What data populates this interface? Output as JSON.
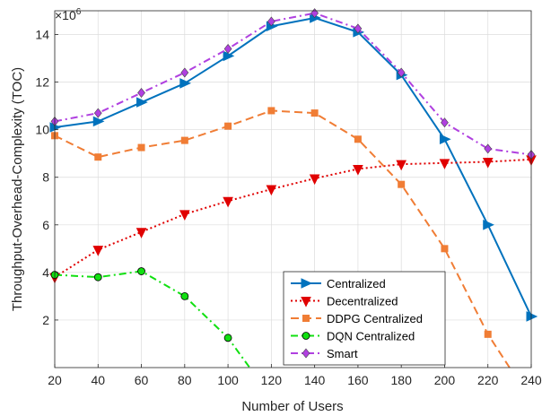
{
  "chart_data": {
    "type": "line",
    "xlabel": "Number of Users",
    "ylabel": "Throughput-Overhead-Complexity (TOC)",
    "y_multiplier": "×10",
    "y_exponent": "6",
    "x": [
      20,
      40,
      60,
      80,
      100,
      120,
      140,
      160,
      180,
      200,
      220,
      240
    ],
    "xlim": [
      20,
      240
    ],
    "ylim": [
      0,
      15
    ],
    "xticks": [
      "20",
      "40",
      "60",
      "80",
      "100",
      "120",
      "140",
      "160",
      "180",
      "200",
      "220",
      "240"
    ],
    "yticks": [
      "2",
      "4",
      "6",
      "8",
      "10",
      "12",
      "14"
    ],
    "ytick_values": [
      2,
      4,
      6,
      8,
      10,
      12,
      14
    ],
    "grid": true,
    "legend_position": "bottom-right",
    "series": [
      {
        "name": "Centralized",
        "color": "#0072BD",
        "dash": "",
        "marker": "triangle-right",
        "x": [
          20,
          40,
          60,
          80,
          100,
          120,
          140,
          160,
          180,
          200,
          220,
          240
        ],
        "values": [
          10.1,
          10.35,
          11.15,
          11.95,
          13.1,
          14.35,
          14.7,
          14.1,
          12.3,
          9.6,
          6.0,
          2.15
        ]
      },
      {
        "name": "Decentralized",
        "color": "#E00000",
        "dash": "2,3",
        "marker": "triangle-down",
        "x": [
          20,
          40,
          60,
          80,
          100,
          120,
          140,
          160,
          180,
          200,
          220,
          240
        ],
        "values": [
          3.8,
          4.95,
          5.7,
          6.45,
          7.0,
          7.5,
          7.95,
          8.35,
          8.55,
          8.6,
          8.65,
          8.75
        ]
      },
      {
        "name": "DDPG Centralized",
        "color": "#F07D35",
        "dash": "9,5",
        "marker": "square",
        "x": [
          20,
          40,
          60,
          80,
          100,
          120,
          140,
          160,
          180,
          200,
          220,
          230
        ],
        "values": [
          9.75,
          8.85,
          9.25,
          9.55,
          10.15,
          10.8,
          10.7,
          9.6,
          7.7,
          5.0,
          1.4,
          0.0
        ]
      },
      {
        "name": "DQN Centralized",
        "color": "#10E010",
        "dash": "8,4,2,4",
        "marker": "circle",
        "x": [
          20,
          40,
          60,
          80,
          100,
          110
        ],
        "values": [
          3.9,
          3.8,
          4.05,
          3.0,
          1.25,
          0.0
        ]
      },
      {
        "name": "Smart",
        "color": "#B040E0",
        "dash": "8,4,2,4",
        "marker": "diamond",
        "x": [
          20,
          40,
          60,
          80,
          100,
          120,
          140,
          160,
          180,
          200,
          220,
          240
        ],
        "values": [
          10.35,
          10.7,
          11.55,
          12.4,
          13.4,
          14.55,
          14.9,
          14.25,
          12.4,
          10.3,
          9.2,
          8.95
        ]
      }
    ]
  }
}
